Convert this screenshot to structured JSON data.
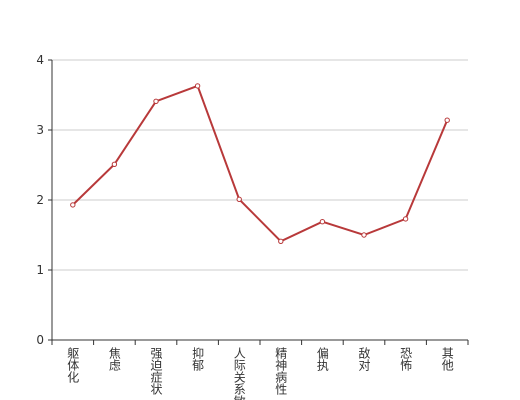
{
  "chart_data": {
    "type": "line",
    "categories": [
      "躯体化",
      "焦虑",
      "强迫症状",
      "抑郁",
      "人际关系敏感",
      "精神病性",
      "偏执",
      "敌对",
      "恐怖",
      "其他"
    ],
    "series": [
      {
        "values": [
          1.93,
          2.51,
          3.41,
          3.63,
          2.01,
          1.41,
          1.69,
          1.5,
          1.73,
          3.14
        ],
        "color": "#b8393a"
      }
    ],
    "ylim": [
      0,
      4
    ],
    "yticks": [
      0,
      1,
      2,
      3,
      4
    ],
    "grid": true
  }
}
